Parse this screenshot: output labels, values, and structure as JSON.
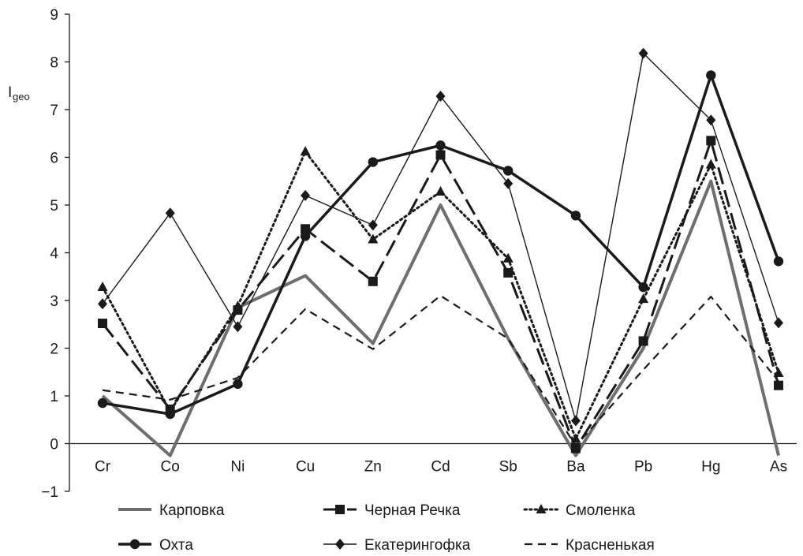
{
  "chart_data": {
    "type": "line",
    "title": "",
    "ylabel": "I",
    "ylabel_subscript": "geo",
    "xlabel": "",
    "ylim": [
      -1,
      9
    ],
    "yticks": [
      -1,
      0,
      1,
      2,
      3,
      4,
      5,
      6,
      7,
      8,
      9
    ],
    "ytick_labels": [
      "−1",
      "0",
      "1",
      "2",
      "3",
      "4",
      "5",
      "6",
      "7",
      "8",
      "9"
    ],
    "categories": [
      "Cr",
      "Co",
      "Ni",
      "Cu",
      "Zn",
      "Cd",
      "Sb",
      "Ba",
      "Pb",
      "Hg",
      "As"
    ],
    "grid": false,
    "legend_position": "bottom",
    "series": [
      {
        "name": "Карповка",
        "color": "#6e6e6e",
        "style": "solid",
        "marker": "none",
        "values": [
          1.0,
          -0.25,
          2.85,
          3.52,
          2.1,
          5.0,
          2.2,
          -0.25,
          2.0,
          5.5,
          -0.25
        ]
      },
      {
        "name": "Черная  Речка",
        "color": "#1a1a1a",
        "style": "longdash",
        "marker": "square",
        "values": [
          2.52,
          0.72,
          2.8,
          4.5,
          3.4,
          6.05,
          3.58,
          -0.1,
          2.15,
          6.35,
          1.22
        ]
      },
      {
        "name": "Смоленка",
        "color": "#1a1a1a",
        "style": "dotted",
        "marker": "triangle",
        "values": [
          3.28,
          0.68,
          2.88,
          6.12,
          4.28,
          5.28,
          3.88,
          0.1,
          3.03,
          5.85,
          1.48
        ]
      },
      {
        "name": "Охта",
        "color": "#1a1a1a",
        "style": "thick",
        "marker": "circle",
        "values": [
          0.85,
          0.62,
          1.25,
          4.35,
          5.9,
          6.25,
          5.72,
          4.78,
          3.28,
          7.72,
          3.82
        ]
      },
      {
        "name": "Екатерингофка",
        "color": "#1a1a1a",
        "style": "thin",
        "marker": "diamond",
        "values": [
          2.93,
          4.83,
          2.45,
          5.2,
          4.58,
          7.28,
          5.45,
          0.48,
          8.18,
          6.78,
          2.53
        ]
      },
      {
        "name": "Красненькая",
        "color": "#1a1a1a",
        "style": "dashed",
        "marker": "none",
        "values": [
          1.12,
          0.92,
          1.38,
          2.82,
          1.98,
          3.1,
          2.2,
          -0.05,
          1.55,
          3.08,
          1.3
        ]
      }
    ]
  }
}
